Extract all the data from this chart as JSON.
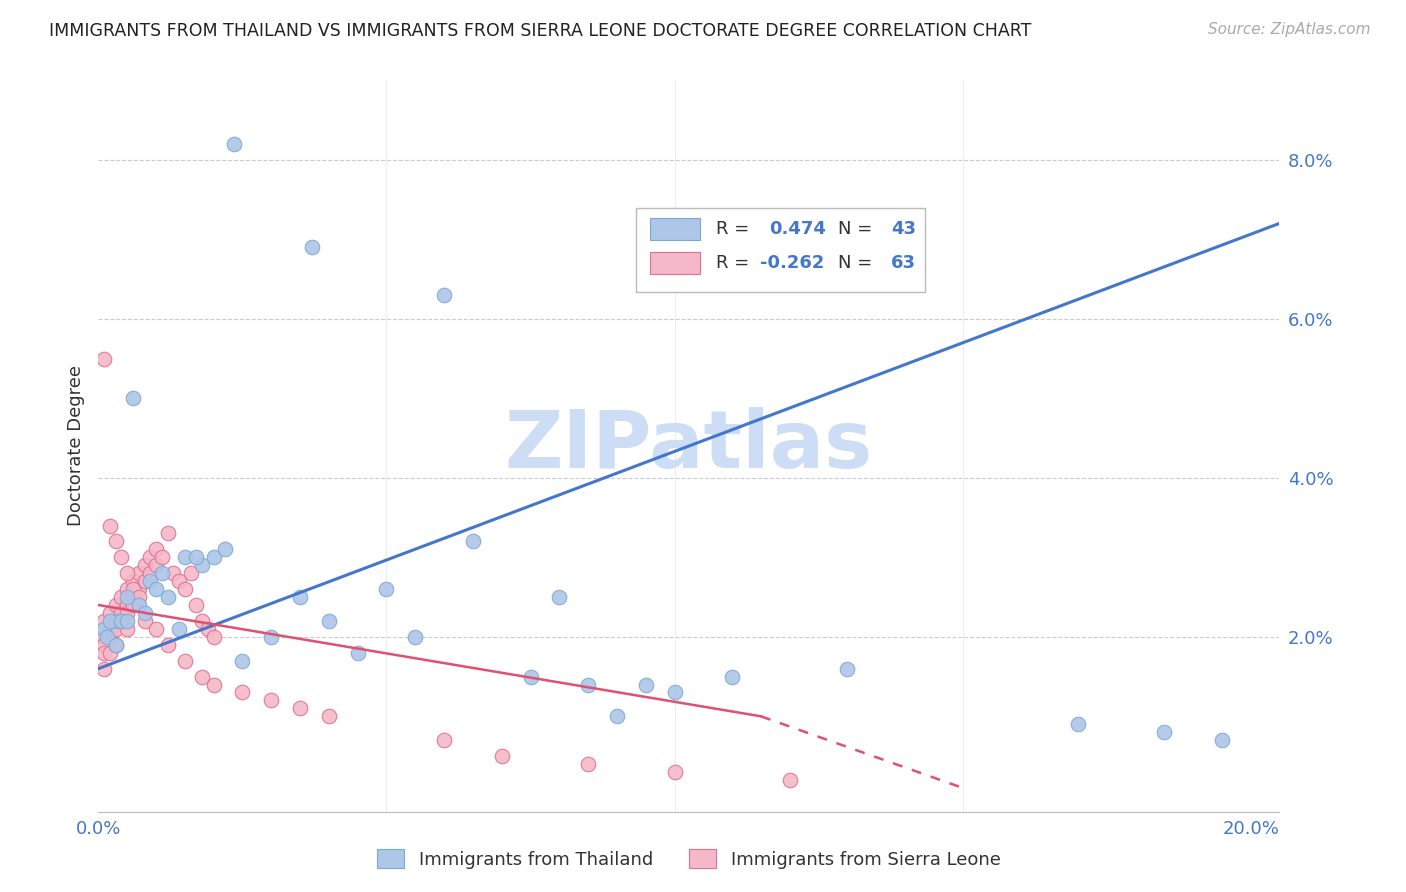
{
  "title": "IMMIGRANTS FROM THAILAND VS IMMIGRANTS FROM SIERRA LEONE DOCTORATE DEGREE CORRELATION CHART",
  "source": "Source: ZipAtlas.com",
  "ylabel": "Doctorate Degree",
  "xlim": [
    0.0,
    0.205
  ],
  "ylim": [
    -0.002,
    0.09
  ],
  "thailand_color": "#aec6e8",
  "thailand_edge": "#7aaad4",
  "sierra_leone_color": "#f5b8c8",
  "sierra_leone_edge": "#e07090",
  "thailand_R": 0.474,
  "thailand_N": 43,
  "sierra_leone_R": -0.262,
  "sierra_leone_N": 63,
  "line_blue": "#4477cc",
  "line_pink": "#e05070",
  "watermark": "ZIPatlas",
  "watermark_color": "#ccddf5",
  "thailand_scatter_x": [
    0.0235,
    0.037,
    0.006,
    0.003,
    0.001,
    0.002,
    0.0015,
    0.003,
    0.004,
    0.005,
    0.007,
    0.009,
    0.01,
    0.012,
    0.015,
    0.018,
    0.02,
    0.022,
    0.06,
    0.055,
    0.045,
    0.035,
    0.075,
    0.08,
    0.085,
    0.09,
    0.095,
    0.1,
    0.13,
    0.17,
    0.185,
    0.195,
    0.005,
    0.008,
    0.011,
    0.014,
    0.017,
    0.025,
    0.03,
    0.04,
    0.05,
    0.065,
    0.11
  ],
  "thailand_scatter_y": [
    0.082,
    0.069,
    0.05,
    0.022,
    0.021,
    0.022,
    0.02,
    0.019,
    0.022,
    0.025,
    0.024,
    0.027,
    0.026,
    0.025,
    0.03,
    0.029,
    0.03,
    0.031,
    0.063,
    0.02,
    0.018,
    0.025,
    0.015,
    0.025,
    0.014,
    0.01,
    0.014,
    0.013,
    0.016,
    0.009,
    0.008,
    0.007,
    0.022,
    0.023,
    0.028,
    0.021,
    0.03,
    0.017,
    0.02,
    0.022,
    0.026,
    0.032,
    0.015
  ],
  "sierra_leone_scatter_x": [
    0.001,
    0.001,
    0.001,
    0.001,
    0.002,
    0.002,
    0.002,
    0.002,
    0.003,
    0.003,
    0.003,
    0.003,
    0.004,
    0.004,
    0.004,
    0.005,
    0.005,
    0.005,
    0.005,
    0.006,
    0.006,
    0.006,
    0.007,
    0.007,
    0.008,
    0.008,
    0.009,
    0.009,
    0.01,
    0.01,
    0.011,
    0.012,
    0.013,
    0.014,
    0.015,
    0.016,
    0.017,
    0.018,
    0.019,
    0.02,
    0.001,
    0.002,
    0.003,
    0.004,
    0.005,
    0.006,
    0.007,
    0.008,
    0.01,
    0.012,
    0.015,
    0.018,
    0.02,
    0.025,
    0.03,
    0.035,
    0.04,
    0.06,
    0.07,
    0.085,
    0.1,
    0.12,
    0.001
  ],
  "sierra_leone_scatter_y": [
    0.022,
    0.02,
    0.019,
    0.018,
    0.023,
    0.021,
    0.02,
    0.018,
    0.024,
    0.022,
    0.021,
    0.019,
    0.025,
    0.023,
    0.022,
    0.026,
    0.024,
    0.023,
    0.021,
    0.027,
    0.025,
    0.024,
    0.028,
    0.026,
    0.029,
    0.027,
    0.03,
    0.028,
    0.031,
    0.029,
    0.03,
    0.033,
    0.028,
    0.027,
    0.026,
    0.028,
    0.024,
    0.022,
    0.021,
    0.02,
    0.055,
    0.034,
    0.032,
    0.03,
    0.028,
    0.026,
    0.025,
    0.022,
    0.021,
    0.019,
    0.017,
    0.015,
    0.014,
    0.013,
    0.012,
    0.011,
    0.01,
    0.007,
    0.005,
    0.004,
    0.003,
    0.002,
    0.016
  ],
  "background_color": "#ffffff",
  "grid_color": "#cccccc"
}
